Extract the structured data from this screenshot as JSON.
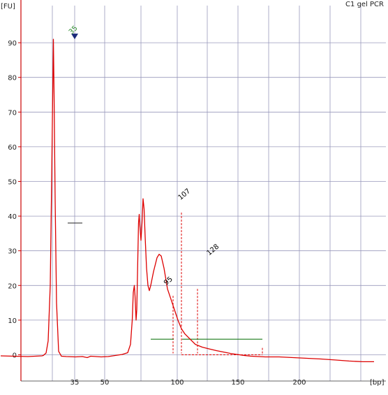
{
  "sample_label": "C1 gel PCR",
  "colors": {
    "background": "#ffffff",
    "axis": "#cc0000",
    "grid": "#9999bb",
    "trace": "#dd0000",
    "marker_peak_label": "#2a8a2a",
    "peak_label": "#000000",
    "marker_triangle": "#1a2a7a",
    "baseline_segment": "#1a7a1a"
  },
  "chart_data": {
    "type": "line",
    "title": "C1 gel PCR",
    "xlabel": "[bp]",
    "ylabel": "[FU]",
    "ylim": [
      -2,
      98
    ],
    "grid": true,
    "y_ticks": [
      0,
      10,
      20,
      30,
      40,
      50,
      60,
      70,
      80,
      90
    ],
    "x_ticks": [
      "35",
      "50",
      "100",
      "150",
      "200"
    ],
    "marker_peak": {
      "label": "35",
      "height": 91
    },
    "peaks": [
      {
        "label": "95",
        "height": 20
      },
      {
        "label": "107",
        "height": 45
      },
      {
        "label": "128",
        "height": 29
      }
    ],
    "trace": [
      [
        1,
        -0.3
      ],
      [
        20,
        -0.4
      ],
      [
        40,
        -0.5
      ],
      [
        60,
        -0.3
      ],
      [
        62,
        -0.2
      ],
      [
        66,
        0.5
      ],
      [
        69,
        4
      ],
      [
        72,
        20
      ],
      [
        74,
        50
      ],
      [
        75.5,
        75
      ],
      [
        76.5,
        91
      ],
      [
        77.5,
        75
      ],
      [
        79,
        45
      ],
      [
        81,
        15
      ],
      [
        84,
        1
      ],
      [
        88,
        -0.4
      ],
      [
        95,
        -0.5
      ],
      [
        108,
        -0.6
      ],
      [
        118,
        -0.5
      ],
      [
        125,
        -0.8
      ],
      [
        130,
        -0.4
      ],
      [
        145,
        -0.6
      ],
      [
        155,
        -0.5
      ],
      [
        165,
        -0.2
      ],
      [
        175,
        0.1
      ],
      [
        183,
        0.6
      ],
      [
        187,
        3
      ],
      [
        189.5,
        10
      ],
      [
        191,
        18
      ],
      [
        192.5,
        20
      ],
      [
        193.5,
        17
      ],
      [
        195,
        10
      ],
      [
        196,
        13
      ],
      [
        197.5,
        28
      ],
      [
        198.5,
        38
      ],
      [
        199.5,
        40.5
      ],
      [
        200.5,
        37
      ],
      [
        202,
        33
      ],
      [
        203.5,
        38
      ],
      [
        205,
        45
      ],
      [
        206.5,
        42
      ],
      [
        208,
        34
      ],
      [
        210,
        25
      ],
      [
        212,
        20
      ],
      [
        214,
        18.5
      ],
      [
        216,
        20
      ],
      [
        220,
        24
      ],
      [
        225,
        28
      ],
      [
        228,
        29
      ],
      [
        231,
        28.5
      ],
      [
        235,
        25
      ],
      [
        240,
        19
      ],
      [
        245,
        16
      ],
      [
        250,
        13
      ],
      [
        255,
        10
      ],
      [
        260,
        7.5
      ],
      [
        265,
        6
      ],
      [
        270,
        5
      ],
      [
        275,
        4
      ],
      [
        280,
        3
      ],
      [
        290,
        2.2
      ],
      [
        300,
        1.7
      ],
      [
        310,
        1.2
      ],
      [
        320,
        0.8
      ],
      [
        330,
        0.4
      ],
      [
        340,
        0.1
      ],
      [
        350,
        -0.2
      ],
      [
        360,
        -0.4
      ],
      [
        380,
        -0.6
      ],
      [
        400,
        -0.6
      ],
      [
        420,
        -0.8
      ],
      [
        440,
        -1
      ],
      [
        460,
        -1.2
      ],
      [
        480,
        -1.5
      ],
      [
        500,
        -1.8
      ],
      [
        520,
        -2
      ],
      [
        536,
        -2
      ]
    ]
  }
}
